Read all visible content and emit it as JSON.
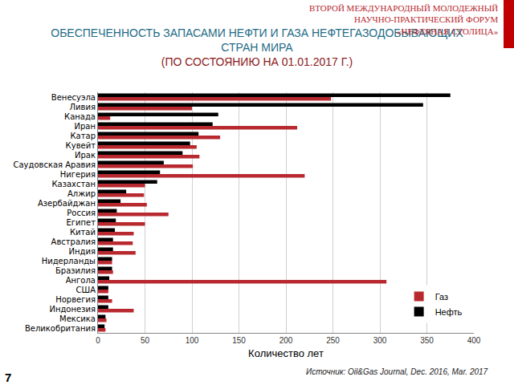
{
  "chart_data": {
    "type": "bar",
    "orientation": "horizontal",
    "title": "ОБЕСПЕЧЕННОСТЬ ЗАПАСАМИ НЕФТИ И ГАЗА НЕФТЕГАЗОДОБЫВАЮЩИХ СТРАН МИРА",
    "subtitle": "(ПО СОСТОЯНИЮ НА 01.01.2017 Г.)",
    "header": [
      "ВТОРОЙ МЕЖДУНАРОДНЫЙ МОЛОДЕЖНЫЙ",
      "НАУЧНО-ПРАКТИЧЕСКИЙ ФОРУМ",
      "«НЕФТЯНАЯ СТОЛИЦА»"
    ],
    "source": "Источник: Oil&Gas Journal, Dec. 2016, Mar. 2017",
    "page": "7",
    "x_label": "Количество лет",
    "categories": [
      "Венесуэла",
      "Ливия",
      "Канада",
      "Иран",
      "Катар",
      "Кувейт",
      "Ирак",
      "Саудовская Аравия",
      "Нигерия",
      "Казахстан",
      "Алжир",
      "Азербайджан",
      "Россия",
      "Египет",
      "Китай",
      "Австралия",
      "Индия",
      "Нидерланды",
      "Бразилия",
      "Ангола",
      "США",
      "Норвегия",
      "Индонезия",
      "Мексика",
      "Великобритания"
    ],
    "series": [
      {
        "name": "Нефть",
        "color": "#000000",
        "values": [
          375,
          346,
          128,
          122,
          107,
          98,
          90,
          70,
          66,
          63,
          30,
          24,
          20,
          19,
          18,
          16,
          16,
          15,
          15,
          12,
          11,
          11,
          11,
          8,
          7
        ]
      },
      {
        "name": "Газ",
        "color": "#b8292f",
        "values": [
          248,
          100,
          13,
          212,
          130,
          105,
          108,
          101,
          220,
          50,
          49,
          52,
          75,
          50,
          38,
          37,
          40,
          15,
          16,
          307,
          11,
          15,
          38,
          9,
          8
        ]
      }
    ],
    "xlim": [
      0,
      400
    ],
    "xticks": [
      0,
      50,
      100,
      150,
      200,
      250,
      300,
      350,
      400
    ],
    "grid": true,
    "legend": "lower right"
  }
}
